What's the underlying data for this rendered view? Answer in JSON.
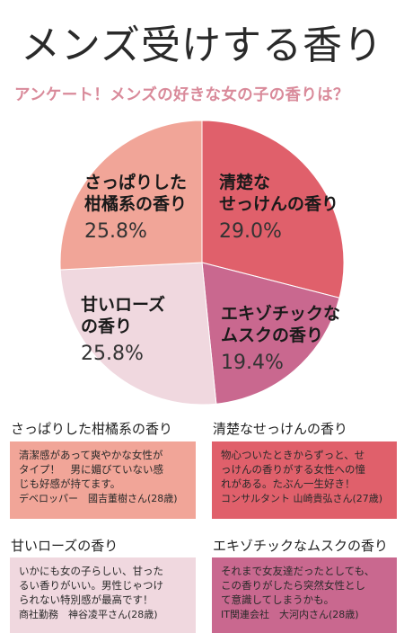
{
  "title": "メンズ受けする香り",
  "subtitle": "アンケート！メンズの好きな女の子の香りは？",
  "colors": {
    "citrus": "#f1a598",
    "soap": "#e0606b",
    "rose": "#f0d8df",
    "musk": "#c9688f"
  },
  "chart_data": {
    "type": "pie",
    "title": "アンケート！メンズの好きな女の子の香りは？",
    "slices": [
      {
        "key": "soap",
        "label_lines": [
          "清楚な",
          "せっけんの香り"
        ],
        "value": 29.0,
        "display": "29.0%"
      },
      {
        "key": "musk",
        "label_lines": [
          "エキゾチックな",
          "ムスクの香り"
        ],
        "value": 19.4,
        "display": "19.4%"
      },
      {
        "key": "rose",
        "label_lines": [
          "甘いローズ",
          "の香り"
        ],
        "value": 25.8,
        "display": "25.8%"
      },
      {
        "key": "citrus",
        "label_lines": [
          "さっぱりした",
          "柑橘系の香り"
        ],
        "value": 25.8,
        "display": "25.8%"
      }
    ]
  },
  "comments": [
    {
      "key": "citrus",
      "heading": "さっぱりした柑橘系の香り",
      "lines": [
        "清潔感があって爽やかな女性が",
        "タイプ！　男に媚びていない感",
        "じも好感が持てます。"
      ],
      "author": "デベロッパー　國吉董樹さん(28歳)"
    },
    {
      "key": "soap",
      "heading": "清楚なせっけんの香り",
      "lines": [
        "物心ついたときからずっと、せ",
        "っけんの香りがする女性への憧",
        "れがある。たぶん一生好き！"
      ],
      "author": "コンサルタント 山崎貴弘さん(27歳)"
    },
    {
      "key": "rose",
      "heading": "甘いローズの香り",
      "lines": [
        "いかにも女の子らしい、甘った",
        "るい香りがいい。男性じゃつけ",
        "られない特別感が最高です！"
      ],
      "author": "商社勤務　神谷凌平さん(28歳)"
    },
    {
      "key": "musk",
      "heading": "エキゾチックなムスクの香り",
      "lines": [
        "それまで女友達だったとしても、",
        "この香りがしたら突然女性とし",
        "て意識してしまうかも。"
      ],
      "author": "IT関連会社　大河内さん(28歳)"
    }
  ]
}
